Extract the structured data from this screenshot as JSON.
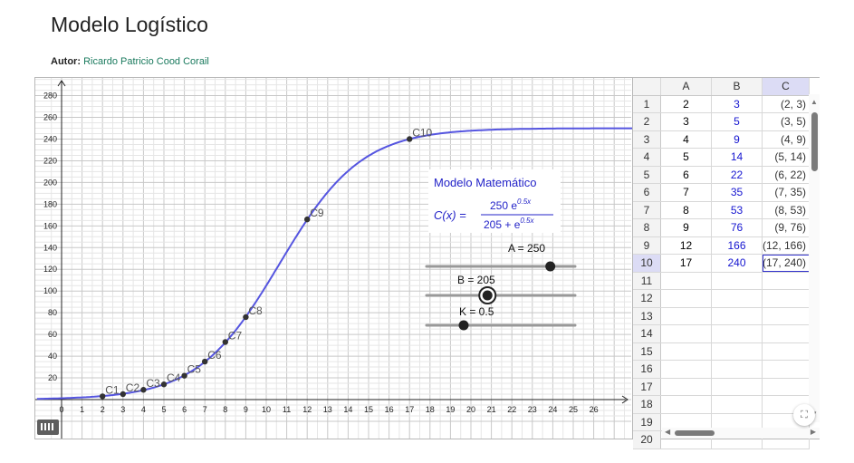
{
  "title": "Modelo Logístico",
  "author": {
    "label": "Autor:",
    "name": "Ricardo Patricio Cood Corail"
  },
  "graph": {
    "x_ticks": [
      0,
      1,
      2,
      3,
      4,
      5,
      6,
      7,
      8,
      9,
      10,
      11,
      12,
      13,
      14,
      15,
      16,
      17,
      18,
      19,
      20,
      21,
      22,
      23,
      24,
      25,
      26
    ],
    "y_ticks": [
      20,
      40,
      60,
      80,
      100,
      120,
      140,
      160,
      180,
      200,
      220,
      240,
      260,
      280
    ],
    "points": [
      {
        "label": "C1",
        "x": 2,
        "y": 3
      },
      {
        "label": "C2",
        "x": 3,
        "y": 5
      },
      {
        "label": "C3",
        "x": 4,
        "y": 9
      },
      {
        "label": "C4",
        "x": 5,
        "y": 14
      },
      {
        "label": "C5",
        "x": 6,
        "y": 22
      },
      {
        "label": "C6",
        "x": 7,
        "y": 35
      },
      {
        "label": "C7",
        "x": 8,
        "y": 53
      },
      {
        "label": "C8",
        "x": 9,
        "y": 76
      },
      {
        "label": "C9",
        "x": 12,
        "y": 166
      },
      {
        "label": "C10",
        "x": 17,
        "y": 240
      }
    ],
    "curve_color": "#5555e0",
    "model": {
      "heading": "Modelo Matemático",
      "lhs": "C(x) =",
      "numerator": "250 e",
      "numerator_exp": "0.5x",
      "denominator": "205 + e",
      "denominator_exp": "0.5x",
      "text_color": "#2323c8"
    },
    "sliders": [
      {
        "label": "A = 250",
        "value": 250,
        "min": 0,
        "max": 300
      },
      {
        "label": "B = 205",
        "value": 205,
        "min": 0,
        "max": 500
      },
      {
        "label": "K = 0.5",
        "value": 0.5,
        "min": 0,
        "max": 2
      }
    ]
  },
  "spreadsheet": {
    "columns": [
      "A",
      "B",
      "C"
    ],
    "selected_column": "C",
    "selected_row": "10",
    "rows": [
      {
        "n": "1",
        "a": "2",
        "b": "3",
        "c": "(2, 3)"
      },
      {
        "n": "2",
        "a": "3",
        "b": "5",
        "c": "(3, 5)"
      },
      {
        "n": "3",
        "a": "4",
        "b": "9",
        "c": "(4, 9)"
      },
      {
        "n": "4",
        "a": "5",
        "b": "14",
        "c": "(5, 14)"
      },
      {
        "n": "5",
        "a": "6",
        "b": "22",
        "c": "(6, 22)"
      },
      {
        "n": "6",
        "a": "7",
        "b": "35",
        "c": "(7, 35)"
      },
      {
        "n": "7",
        "a": "8",
        "b": "53",
        "c": "(8, 53)"
      },
      {
        "n": "8",
        "a": "9",
        "b": "76",
        "c": "(9, 76)"
      },
      {
        "n": "9",
        "a": "12",
        "b": "166",
        "c": "(12, 166)"
      },
      {
        "n": "10",
        "a": "17",
        "b": "240",
        "c": "(17, 240)"
      },
      {
        "n": "11",
        "a": "",
        "b": "",
        "c": ""
      },
      {
        "n": "12",
        "a": "",
        "b": "",
        "c": ""
      },
      {
        "n": "13",
        "a": "",
        "b": "",
        "c": ""
      },
      {
        "n": "14",
        "a": "",
        "b": "",
        "c": ""
      },
      {
        "n": "15",
        "a": "",
        "b": "",
        "c": ""
      },
      {
        "n": "16",
        "a": "",
        "b": "",
        "c": ""
      },
      {
        "n": "17",
        "a": "",
        "b": "",
        "c": ""
      },
      {
        "n": "18",
        "a": "",
        "b": "",
        "c": ""
      },
      {
        "n": "19",
        "a": "",
        "b": "",
        "c": ""
      },
      {
        "n": "20",
        "a": "",
        "b": "",
        "c": ""
      }
    ]
  },
  "icons": {
    "fullscreen": "fullscreen-icon",
    "keyboard": "keyboard-icon"
  }
}
